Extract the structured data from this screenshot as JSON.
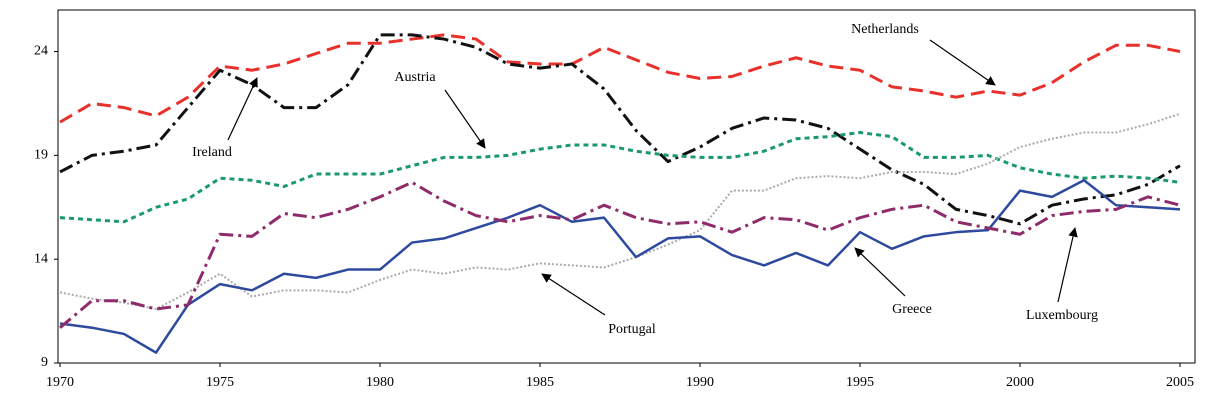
{
  "chart_data": {
    "type": "line",
    "x": [
      1970,
      1971,
      1972,
      1973,
      1974,
      1975,
      1976,
      1977,
      1978,
      1979,
      1980,
      1981,
      1982,
      1983,
      1984,
      1985,
      1986,
      1987,
      1988,
      1989,
      1990,
      1991,
      1992,
      1993,
      1994,
      1995,
      1996,
      1997,
      1998,
      1999,
      2000,
      2001,
      2002,
      2003,
      2004,
      2005
    ],
    "xlim": [
      1970,
      2005.5
    ],
    "xticks": [
      1970,
      1975,
      1980,
      1985,
      1990,
      1995,
      2000,
      2005
    ],
    "ylim": [
      9,
      26
    ],
    "yticks": [
      9,
      14,
      19,
      24
    ],
    "series": [
      {
        "name": "Netherlands",
        "color": "#e8312a",
        "values": [
          20.6,
          21.5,
          21.3,
          20.9,
          21.8,
          23.3,
          23.1,
          23.4,
          23.9,
          24.4,
          24.4,
          24.6,
          24.8,
          24.6,
          23.5,
          23.4,
          23.4,
          24.2,
          23.6,
          23.0,
          22.7,
          22.8,
          23.3,
          23.7,
          23.3,
          23.1,
          22.3,
          22.1,
          21.8,
          22.1,
          21.9,
          22.5,
          23.5,
          24.3,
          24.3,
          24.0
        ]
      },
      {
        "name": "Ireland",
        "color": "#111111",
        "values": [
          18.2,
          19.0,
          19.2,
          19.5,
          21.3,
          23.1,
          22.4,
          21.3,
          21.3,
          22.4,
          24.8,
          24.8,
          24.6,
          24.2,
          23.4,
          23.2,
          23.4,
          22.2,
          20.2,
          18.7,
          19.4,
          20.3,
          20.8,
          20.7,
          20.3,
          19.3,
          18.3,
          17.6,
          16.4,
          16.1,
          15.7,
          16.6,
          16.9,
          17.1,
          17.6,
          18.5
        ]
      },
      {
        "name": "Austria",
        "color": "#1a9a6c",
        "values": [
          16.0,
          15.9,
          15.8,
          16.5,
          16.9,
          17.9,
          17.8,
          17.5,
          18.1,
          18.1,
          18.1,
          18.5,
          18.9,
          18.9,
          19.0,
          19.3,
          19.5,
          19.5,
          19.2,
          19.0,
          18.9,
          18.9,
          19.2,
          19.8,
          19.9,
          20.1,
          19.9,
          18.9,
          18.9,
          19.0,
          18.4,
          18.1,
          17.9,
          18.0,
          17.9,
          17.7
        ]
      },
      {
        "name": "Portugal",
        "color": "#aaaaaa",
        "values": [
          12.4,
          12.1,
          11.9,
          11.6,
          12.4,
          13.3,
          12.2,
          12.5,
          12.5,
          12.4,
          13.0,
          13.5,
          13.3,
          13.6,
          13.5,
          13.8,
          13.7,
          13.6,
          14.1,
          14.7,
          15.4,
          17.3,
          17.3,
          17.9,
          18.0,
          17.9,
          18.2,
          18.2,
          18.1,
          18.6,
          19.4,
          19.8,
          20.1,
          20.1,
          20.5,
          21.0
        ]
      },
      {
        "name": "Greece",
        "color": "#2e4a9e",
        "values": [
          10.9,
          10.7,
          10.4,
          9.5,
          11.8,
          12.8,
          12.5,
          13.3,
          13.1,
          13.5,
          13.5,
          14.8,
          15.0,
          15.5,
          16.0,
          16.6,
          15.8,
          16.0,
          14.1,
          15.0,
          15.1,
          14.2,
          13.7,
          14.3,
          13.7,
          15.3,
          14.5,
          15.1,
          15.3,
          15.4,
          17.3,
          17.0,
          17.8,
          16.6,
          16.5,
          16.4
        ]
      },
      {
        "name": "Luxembourg",
        "color": "#8e2b6a",
        "values": [
          10.7,
          12.0,
          12.0,
          11.6,
          11.8,
          15.2,
          15.1,
          16.2,
          16.0,
          16.4,
          17.0,
          17.7,
          16.8,
          16.1,
          15.8,
          16.1,
          15.9,
          16.6,
          16.0,
          15.7,
          15.8,
          15.3,
          16.0,
          15.9,
          15.4,
          16.0,
          16.4,
          16.6,
          15.8,
          15.5,
          15.2,
          16.1,
          16.3,
          16.4,
          17.0,
          16.6
        ]
      }
    ]
  }
}
